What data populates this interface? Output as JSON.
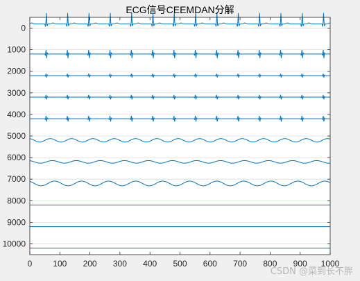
{
  "chart_data": {
    "type": "line",
    "title": "ECG信号CEEMDAN分解",
    "xlabel": "",
    "ylabel": "",
    "xlim": [
      0,
      1000
    ],
    "ylim": [
      10500,
      -500
    ],
    "y_reversed": true,
    "grid": true,
    "x_ticks": [
      0,
      100,
      200,
      300,
      400,
      500,
      600,
      700,
      800,
      900,
      1000
    ],
    "y_ticks": [
      0,
      1000,
      2000,
      3000,
      4000,
      5000,
      6000,
      7000,
      8000,
      9000,
      10000
    ],
    "line_color": "#0072bd",
    "series": [
      {
        "offset": -200,
        "kind": "qrs",
        "period": 71,
        "amplitude": 500
      },
      {
        "offset": 1200,
        "kind": "burst",
        "period": 71,
        "amplitude": 220
      },
      {
        "offset": 2200,
        "kind": "burst",
        "period": 71,
        "amplitude": 100
      },
      {
        "offset": 3200,
        "kind": "burst",
        "period": 71,
        "amplitude": 120
      },
      {
        "offset": 4200,
        "kind": "burst",
        "period": 71,
        "amplitude": 150
      },
      {
        "offset": 5200,
        "kind": "wave",
        "period": 71,
        "amplitude": 80
      },
      {
        "offset": 6200,
        "kind": "wave",
        "period": 80,
        "amplitude": 60
      },
      {
        "offset": 7200,
        "kind": "wave",
        "period": 90,
        "amplitude": 110
      },
      {
        "offset": 8200,
        "kind": "flat",
        "period": 0,
        "amplitude": 0
      },
      {
        "offset": 9200,
        "kind": "flat",
        "period": 0,
        "amplitude": 0
      },
      {
        "offset": 10200,
        "kind": "flat",
        "period": 0,
        "amplitude": 0
      }
    ]
  },
  "watermark": "CSDN @菜到长不胖"
}
